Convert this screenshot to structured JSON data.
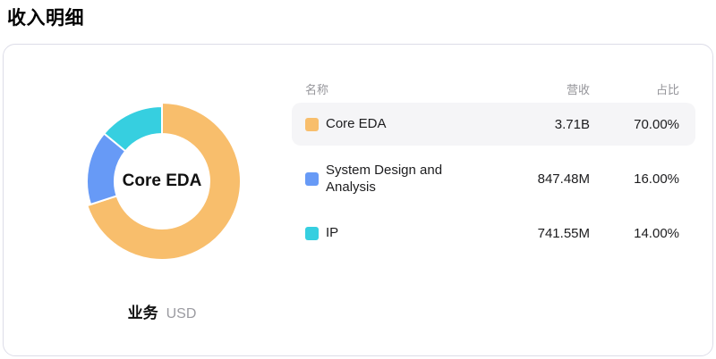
{
  "page": {
    "title": "收入明细"
  },
  "card": {
    "chart": {
      "center_label": "Core EDA",
      "dimension_label": "业务",
      "unit_label": "USD"
    },
    "table": {
      "headers": {
        "name": "名称",
        "revenue": "营收",
        "share": "占比"
      },
      "rows": [
        {
          "name": "Core EDA",
          "revenue": "3.71B",
          "share": "70.00%",
          "color": "#F8BE6C",
          "highlighted": true
        },
        {
          "name": "System Design and Analysis",
          "revenue": "847.48M",
          "share": "16.00%",
          "color": "#679AF6",
          "highlighted": false
        },
        {
          "name": "IP",
          "revenue": "741.55M",
          "share": "14.00%",
          "color": "#36CFE0",
          "highlighted": false
        }
      ]
    }
  },
  "chart_data": {
    "type": "pie",
    "donut": true,
    "title": "收入明细",
    "categories": [
      "Core EDA",
      "System Design and Analysis",
      "IP"
    ],
    "values": [
      70,
      16,
      14
    ],
    "value_labels": [
      "3.71B",
      "847.48M",
      "741.55M"
    ],
    "share_labels": [
      "70.00%",
      "16.00%",
      "14.00%"
    ],
    "colors": [
      "#F8BE6C",
      "#679AF6",
      "#36CFE0"
    ],
    "center_label": "Core EDA",
    "unit": "USD",
    "emphasis_index": 0,
    "start_angle_deg": 0,
    "direction": "clockwise",
    "legend_position": "right-table"
  }
}
